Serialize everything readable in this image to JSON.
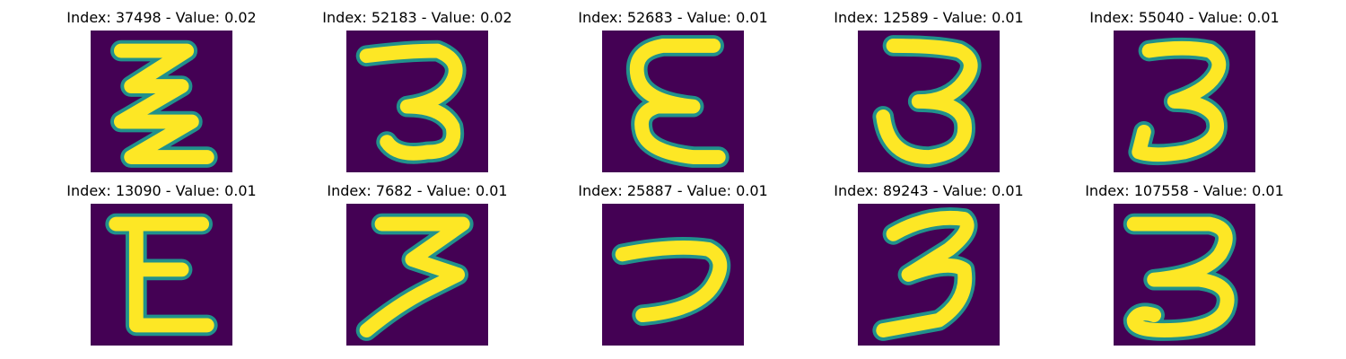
{
  "panels": [
    {
      "index": 37498,
      "value": "0.02",
      "title": "Index: 37498 - Value: 0.02",
      "glyph": "zigzag-three"
    },
    {
      "index": 52183,
      "value": "0.02",
      "title": "Index: 52183 - Value: 0.02",
      "glyph": "three"
    },
    {
      "index": 52683,
      "value": "0.01",
      "title": "Index: 52683 - Value: 0.01",
      "glyph": "epsilon"
    },
    {
      "index": 12589,
      "value": "0.01",
      "title": "Index: 12589 - Value: 0.01",
      "glyph": "three"
    },
    {
      "index": 55040,
      "value": "0.01",
      "title": "Index: 55040 - Value: 0.01",
      "glyph": "three"
    },
    {
      "index": 13090,
      "value": "0.01",
      "title": "Index: 13090 - Value: 0.01",
      "glyph": "epsilon"
    },
    {
      "index": 7682,
      "value": "0.01",
      "title": "Index: 7682 - Value: 0.01",
      "glyph": "zigzag-three"
    },
    {
      "index": 25887,
      "value": "0.01",
      "title": "Index: 25887 - Value: 0.01",
      "glyph": "hook"
    },
    {
      "index": 89243,
      "value": "0.01",
      "title": "Index: 89243 - Value: 0.01",
      "glyph": "three"
    },
    {
      "index": 107558,
      "value": "0.01",
      "title": "Index: 107558 - Value: 0.01",
      "glyph": "three"
    }
  ],
  "colors": {
    "background": "#440154",
    "stroke_edge": "#21918c",
    "stroke_core": "#fde725"
  }
}
